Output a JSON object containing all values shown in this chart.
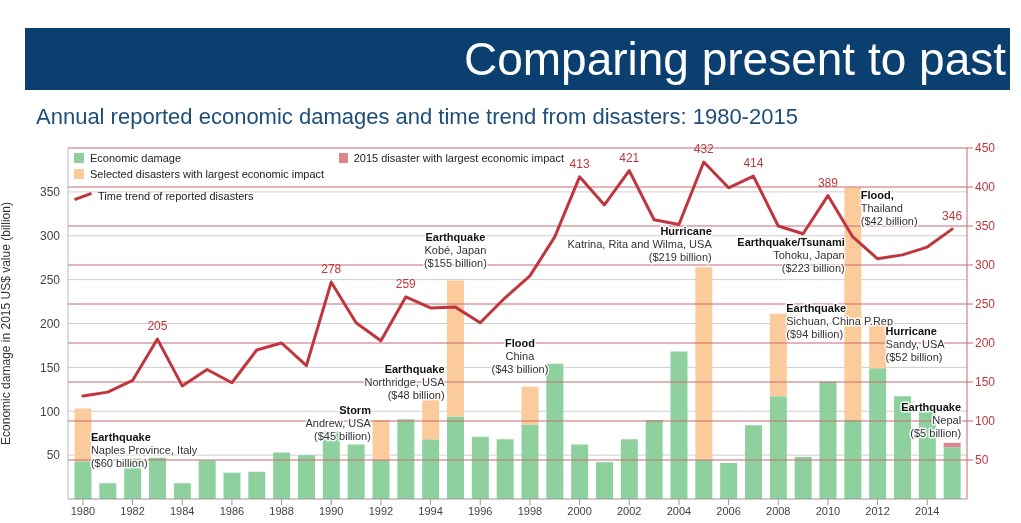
{
  "chart_data": {
    "type": "bar",
    "title": "Comparing present to past",
    "subtitle": "Annual reported economic damages and time trend from disasters: 1980-2015",
    "ylabel": "Economic damage in 2015 US$ value (billion)",
    "x": [
      1980,
      1981,
      1982,
      1983,
      1984,
      1985,
      1986,
      1987,
      1988,
      1989,
      1990,
      1991,
      1992,
      1993,
      1994,
      1995,
      1996,
      1997,
      1998,
      1999,
      2000,
      2001,
      2002,
      2003,
      2004,
      2005,
      2006,
      2007,
      2008,
      2009,
      2010,
      2011,
      2012,
      2013,
      2014,
      2015
    ],
    "xlim": [
      1979.4,
      2015.6
    ],
    "xticks": [
      1980,
      1982,
      1984,
      1986,
      1988,
      1990,
      1992,
      1994,
      1996,
      1998,
      2000,
      2002,
      2004,
      2006,
      2008,
      2010,
      2012,
      2014
    ],
    "ylim": [
      0,
      400
    ],
    "yticks": [
      50,
      100,
      150,
      200,
      250,
      300,
      350
    ],
    "y2lim": [
      0,
      450
    ],
    "y2ticks": [
      50,
      100,
      150,
      200,
      250,
      300,
      350,
      400,
      450
    ],
    "stacked": true,
    "grid": "y",
    "legend": "top left",
    "marker": "none",
    "line_style": "solid",
    "series": [
      {
        "name": "Economic damage",
        "color": "#8fd19e",
        "values": [
          43,
          18,
          46,
          47,
          18,
          44,
          30,
          31,
          53,
          50,
          77,
          62,
          45,
          91,
          68,
          94,
          71,
          68,
          85,
          154,
          62,
          42,
          68,
          90,
          168,
          45,
          41,
          84,
          117,
          48,
          134,
          90,
          149,
          117,
          100,
          59
        ]
      },
      {
        "name": "2015 disaster with largest economic impact",
        "color": "#d9868c",
        "values": [
          null,
          null,
          null,
          null,
          null,
          null,
          null,
          null,
          null,
          null,
          null,
          null,
          null,
          null,
          null,
          null,
          null,
          null,
          null,
          null,
          null,
          null,
          null,
          null,
          null,
          null,
          null,
          null,
          null,
          null,
          null,
          null,
          null,
          null,
          null,
          5
        ]
      },
      {
        "name": "Selected disasters with largest economic impact",
        "color": "#fccb9c",
        "values": [
          60,
          null,
          null,
          null,
          null,
          null,
          null,
          null,
          null,
          null,
          null,
          null,
          45,
          null,
          48,
          155,
          null,
          null,
          43,
          null,
          null,
          null,
          null,
          null,
          null,
          219,
          null,
          null,
          94,
          null,
          null,
          223,
          52,
          null,
          null,
          null
        ]
      },
      {
        "color": "#fccb9c",
        "values": [
          null,
          null,
          null,
          null,
          null,
          null,
          null,
          null,
          null,
          null,
          null,
          null,
          null,
          null,
          null,
          null,
          null,
          null,
          null,
          null,
          null,
          null,
          null,
          null,
          null,
          null,
          null,
          null,
          null,
          null,
          null,
          42,
          null,
          null,
          null,
          null
        ]
      },
      {
        "name": "Time trend of reported disasters",
        "type": "line",
        "axis": "y2",
        "color": "#c0363f",
        "values": [
          132,
          137,
          152,
          205,
          145,
          166,
          149,
          191,
          200,
          171,
          278,
          226,
          203,
          259,
          245,
          246,
          226,
          258,
          286,
          336,
          413,
          377,
          421,
          358,
          352,
          432,
          399,
          414,
          350,
          340,
          389,
          336,
          308,
          313,
          323,
          346
        ],
        "value_labels": [
          null,
          null,
          null,
          "205",
          null,
          null,
          null,
          null,
          null,
          null,
          "278",
          null,
          null,
          "259",
          null,
          null,
          null,
          null,
          null,
          null,
          "413",
          null,
          "421",
          null,
          null,
          "432",
          null,
          "414",
          null,
          null,
          "389",
          null,
          null,
          null,
          null,
          "346"
        ]
      }
    ],
    "annotations": [
      {
        "text": "Earthquake\nNaples Province, Italy\n($60 billion)",
        "x": 1980,
        "y": 103
      },
      {
        "text": "Storm\nAndrew, USA\n($45 billion)",
        "x": 1992,
        "y": 90
      },
      {
        "text": "Earthquake\nNorthridge, USA\n($48 billion)",
        "x": 1994,
        "y": 116
      },
      {
        "text": "Earthquake\nKobé, Japan\n($155 billion)",
        "x": 1995,
        "y": 249
      },
      {
        "text": "Flood\nChina\n($43 billion)",
        "x": 1998,
        "y": 128
      },
      {
        "text": "Hurricane\nKatrina, Rita and Wilma, USA\n($219 billion)",
        "x": 2005,
        "y": 264
      },
      {
        "text": "Earthquake\nSichuan, China P.Rep\n($94 billion)",
        "x": 2008,
        "y": 211
      },
      {
        "text": "Earthquake/Tsunami\nTohoku, Japan\n($223 billion)",
        "x": 2011,
        "y": 313
      },
      {
        "text": "Flood,\nThailand\n($42 billion)",
        "x": 2011,
        "y": 355
      },
      {
        "text": "Hurricane\nSandy, USA\n($52 billion)",
        "x": 2012,
        "y": 201
      },
      {
        "text": "Earthquake\nNepal\n($5 billion)",
        "x": 2015,
        "y": 64
      }
    ]
  }
}
